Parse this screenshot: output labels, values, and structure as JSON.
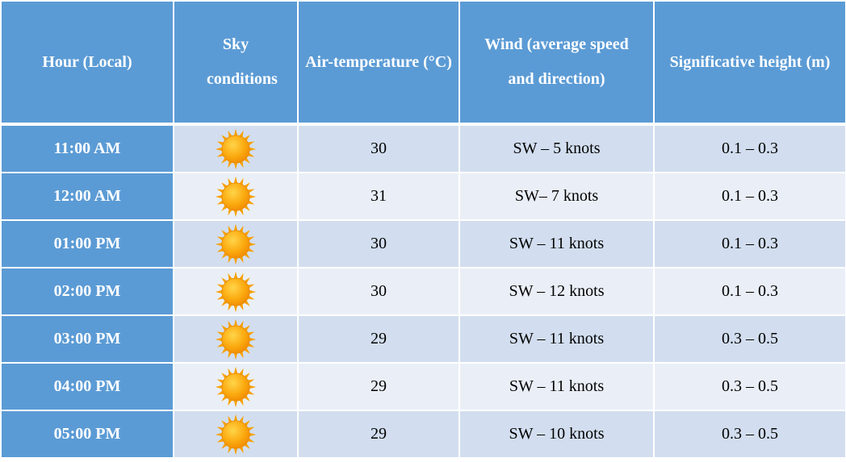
{
  "colors": {
    "header": "#5B9BD5",
    "row_dark": "#D2DEEF",
    "row_light": "#EAEFF7",
    "sun": "#F7A600"
  },
  "headers": [
    "Hour (Local)",
    "Sky conditions",
    "Air-temperature (°C)",
    "Wind (average speed and direction)",
    "Significative height (m)"
  ],
  "rows": [
    {
      "hour": "11:00 AM",
      "sky": "sun-icon",
      "temp": "30",
      "wind": "SW – 5 knots",
      "height": "0.1 – 0.3"
    },
    {
      "hour": "12:00 AM",
      "sky": "sun-icon",
      "temp": "31",
      "wind": "SW– 7 knots",
      "height": "0.1 – 0.3"
    },
    {
      "hour": "01:00 PM",
      "sky": "sun-icon",
      "temp": "30",
      "wind": "SW – 11 knots",
      "height": "0.1 – 0.3"
    },
    {
      "hour": "02:00 PM",
      "sky": "sun-icon",
      "temp": "30",
      "wind": "SW – 12 knots",
      "height": "0.1 – 0.3"
    },
    {
      "hour": "03:00 PM",
      "sky": "sun-icon",
      "temp": "29",
      "wind": "SW – 11 knots",
      "height": "0.3 – 0.5"
    },
    {
      "hour": "04:00 PM",
      "sky": "sun-icon",
      "temp": "29",
      "wind": "SW – 11 knots",
      "height": "0.3 – 0.5"
    },
    {
      "hour": "05:00 PM",
      "sky": "sun-icon",
      "temp": "29",
      "wind": "SW – 10 knots",
      "height": "0.3 – 0.5"
    }
  ]
}
